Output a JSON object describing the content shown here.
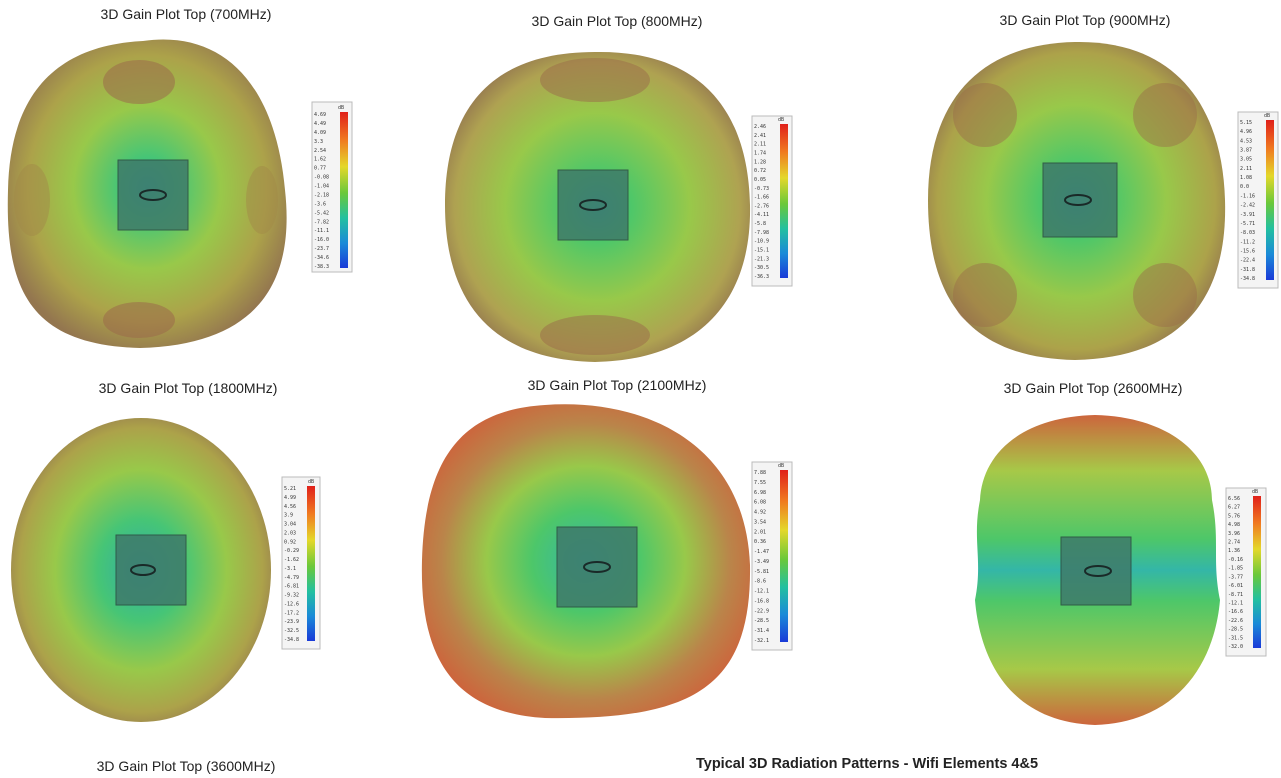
{
  "plots": [
    {
      "title": "3D Gain Plot Top (700MHz)",
      "legend_unit": "dB",
      "legend_values": [
        "4.69",
        "4.49",
        "4.09",
        "3.3",
        "2.54",
        "1.62",
        "0.77",
        "-0.08",
        "-1.04",
        "-2.18",
        "-3.6",
        "-5.42",
        "-7.82",
        "-11.1",
        "-16.0",
        "-23.7",
        "-34.6",
        "-38.3"
      ]
    },
    {
      "title": "3D Gain Plot Top (800MHz)",
      "legend_unit": "dB",
      "legend_values": [
        "2.46",
        "2.41",
        "2.11",
        "1.74",
        "1.28",
        "0.72",
        "0.05",
        "-0.73",
        "-1.66",
        "-2.76",
        "-4.11",
        "-5.8",
        "-7.98",
        "-10.9",
        "-15.1",
        "-21.3",
        "-30.5",
        "-36.3"
      ]
    },
    {
      "title": "3D Gain Plot Top (900MHz)",
      "legend_unit": "dB",
      "legend_values": [
        "5.15",
        "4.96",
        "4.53",
        "3.87",
        "3.05",
        "2.11",
        "1.08",
        "0.0",
        "-1.16",
        "-2.42",
        "-3.91",
        "-5.71",
        "-8.03",
        "-11.2",
        "-15.6",
        "-22.4",
        "-31.8",
        "-34.8"
      ]
    },
    {
      "title": "3D Gain Plot Top (1800MHz)",
      "legend_unit": "dB",
      "legend_values": [
        "5.21",
        "4.99",
        "4.56",
        "3.9",
        "3.04",
        "2.03",
        "0.92",
        "-0.29",
        "-1.62",
        "-3.1",
        "-4.79",
        "-6.81",
        "-9.32",
        "-12.6",
        "-17.2",
        "-23.9",
        "-32.5",
        "-34.8"
      ]
    },
    {
      "title": "3D Gain Plot Top (2100MHz)",
      "legend_unit": "dB",
      "legend_values": [
        "7.88",
        "7.55",
        "6.98",
        "6.08",
        "4.92",
        "3.54",
        "2.01",
        "0.36",
        "-1.47",
        "-3.49",
        "-5.81",
        "-8.6",
        "-12.1",
        "-16.8",
        "-22.9",
        "-28.5",
        "-31.4",
        "-32.1"
      ]
    },
    {
      "title": "3D Gain Plot Top (2600MHz)",
      "legend_unit": "dB",
      "legend_values": [
        "6.56",
        "6.27",
        "5.76",
        "4.98",
        "3.96",
        "2.74",
        "1.36",
        "-0.16",
        "-1.85",
        "-3.77",
        "-6.01",
        "-8.71",
        "-12.1",
        "-16.6",
        "-22.6",
        "-28.5",
        "-31.5",
        "-32.0"
      ]
    }
  ],
  "bottom_title": "3D Gain Plot Top (3600MHz)",
  "caption": "Typical 3D Radiation Patterns - Wifi Elements 4&5",
  "colors": {
    "outer": "#8c7a3c",
    "mid": "#8ec03a",
    "inner": "#3ec25c",
    "center": "#22b0a0",
    "warm": "#c8582c",
    "feed_box": "#3f7a6a"
  }
}
